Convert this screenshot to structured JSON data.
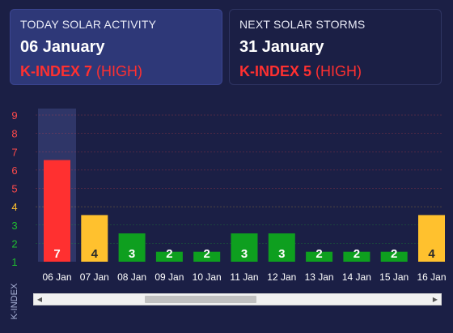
{
  "today": {
    "label": "TODAY SOLAR ACTIVITY",
    "date": "06 January",
    "kindex_label": "K-INDEX 7",
    "level": "(HIGH)"
  },
  "next": {
    "label": "NEXT SOLAR STORMS",
    "date": "31 January",
    "kindex_label": "K-INDEX 5",
    "level": "(HIGH)"
  },
  "chart_data": {
    "type": "bar",
    "categories": [
      "06 Jan",
      "07 Jan",
      "08 Jan",
      "09 Jan",
      "10 Jan",
      "11 Jan",
      "12 Jan",
      "13 Jan",
      "14 Jan",
      "15 Jan",
      "16 Jan"
    ],
    "values": [
      7,
      4,
      3,
      2,
      2,
      3,
      3,
      2,
      2,
      2,
      4
    ],
    "ylabel": "K-INDEX",
    "ylim": [
      1,
      9
    ],
    "yticks": [
      1,
      2,
      3,
      4,
      5,
      6,
      7,
      8,
      9
    ],
    "highlighted_category": "06 Jan",
    "colors": {
      "high": "#ff3030",
      "moderate": "#ffc12e",
      "low": "#0e9f1f",
      "tick_high": "#ff4a4a",
      "tick_moderate": "#ffc12e",
      "tick_low": "#1fbf2f"
    }
  },
  "scrollbar": {
    "left_arrow_icon": "triangle-left-icon",
    "right_arrow_icon": "triangle-right-icon"
  }
}
